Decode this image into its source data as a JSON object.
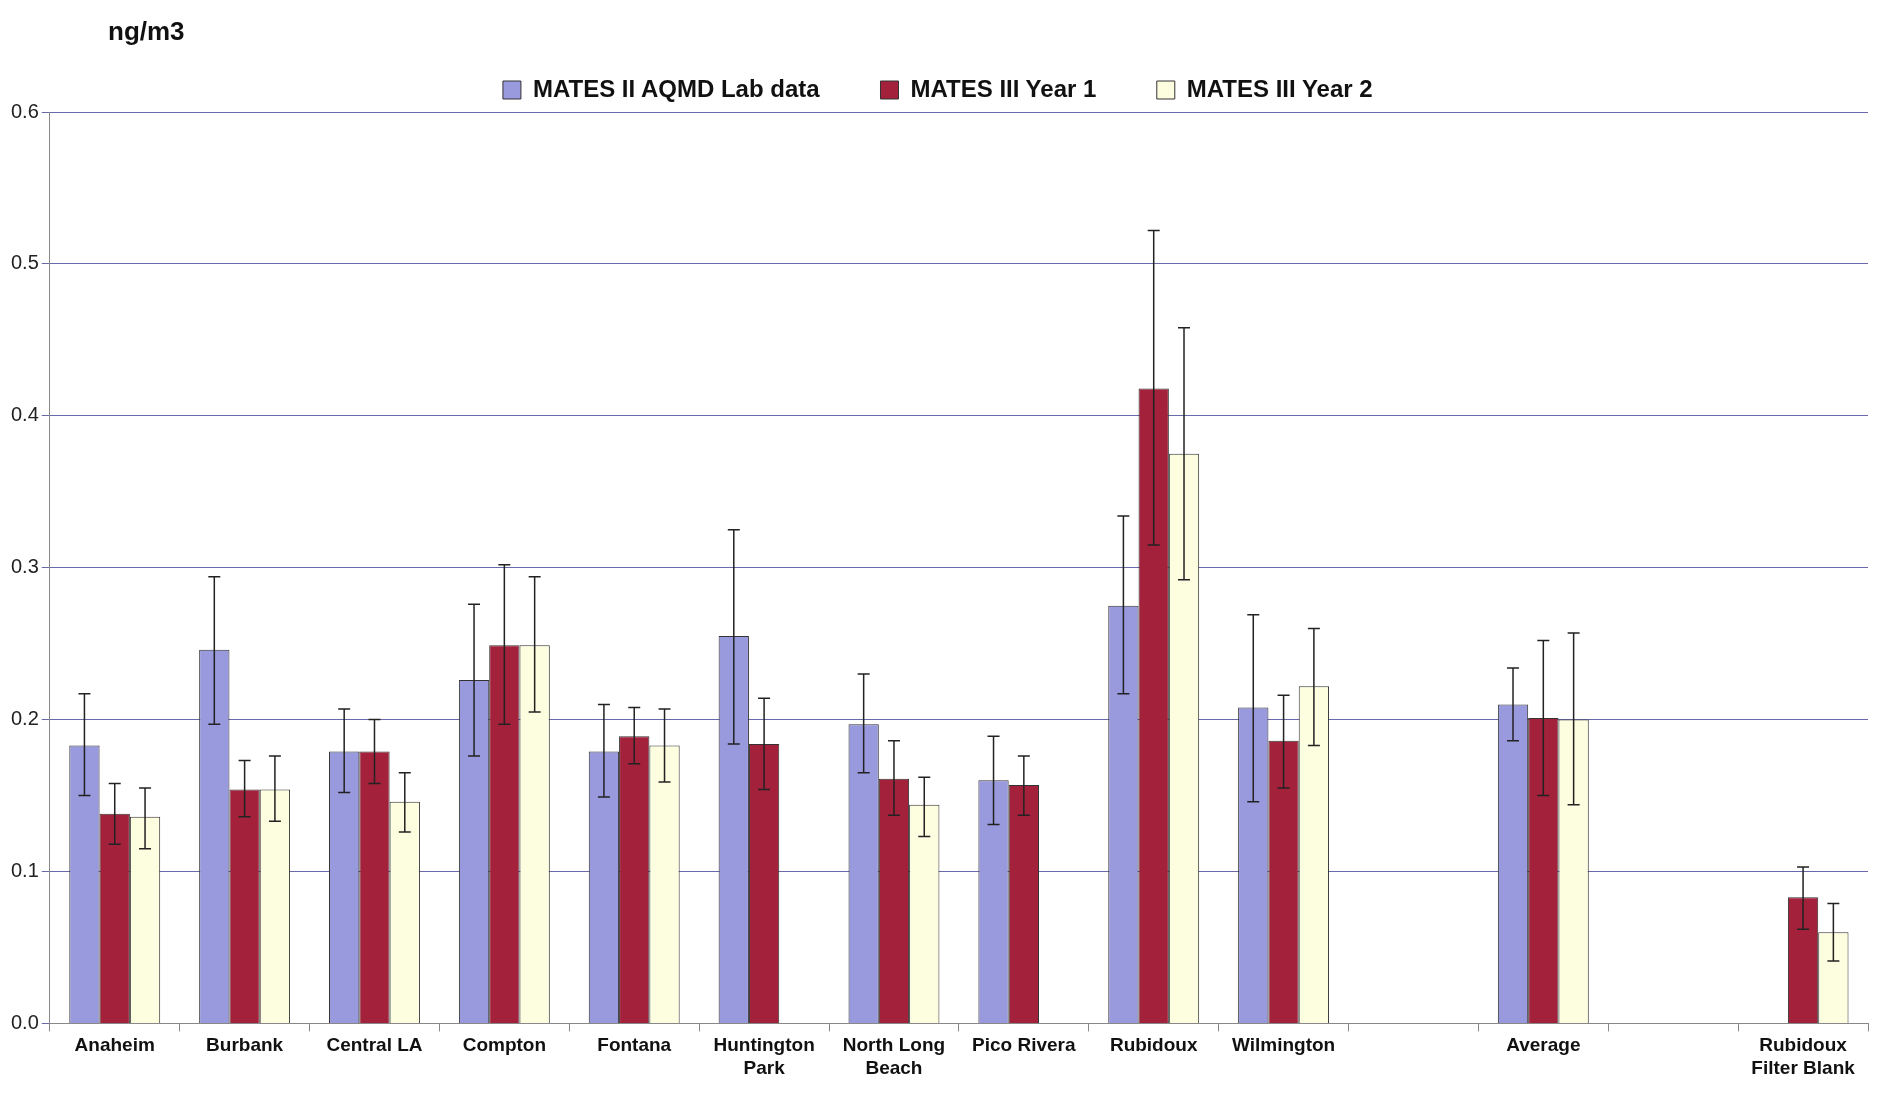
{
  "chart_data": {
    "type": "bar",
    "ylabel": "ng/m3",
    "categories": [
      "Anaheim",
      "Burbank",
      "Central LA",
      "Compton",
      "Fontana",
      "Huntington Park",
      "North Long Beach",
      "Pico Rivera",
      "Rubidoux",
      "Wilmington",
      null,
      "Average",
      null,
      "Rubidoux Filter Blank"
    ],
    "series": [
      {
        "name": "MATES II AQMD Lab data",
        "color": "#9999dd",
        "values": [
          0.183,
          0.246,
          0.179,
          0.226,
          0.179,
          0.255,
          0.197,
          0.16,
          0.275,
          0.208,
          null,
          0.21,
          null,
          null
        ],
        "errors": [
          [
            0.15,
            0.217
          ],
          [
            0.197,
            0.294
          ],
          [
            0.152,
            0.207
          ],
          [
            0.176,
            0.276
          ],
          [
            0.149,
            0.21
          ],
          [
            0.184,
            0.325
          ],
          [
            0.165,
            0.23
          ],
          [
            0.131,
            0.189
          ],
          [
            0.217,
            0.334
          ],
          [
            0.146,
            0.269
          ],
          null,
          [
            0.186,
            0.234
          ],
          null,
          null
        ]
      },
      {
        "name": "MATES III Year 1",
        "color": "#a3213b",
        "values": [
          0.138,
          0.154,
          0.179,
          0.249,
          0.189,
          0.184,
          0.161,
          0.157,
          0.418,
          0.186,
          null,
          0.201,
          null,
          0.083
        ],
        "errors": [
          [
            0.118,
            0.158
          ],
          [
            0.136,
            0.173
          ],
          [
            0.158,
            0.2
          ],
          [
            0.197,
            0.302
          ],
          [
            0.171,
            0.208
          ],
          [
            0.154,
            0.214
          ],
          [
            0.137,
            0.186
          ],
          [
            0.137,
            0.176
          ],
          [
            0.315,
            0.522
          ],
          [
            0.155,
            0.216
          ],
          null,
          [
            0.15,
            0.252
          ],
          null,
          [
            0.062,
            0.103
          ]
        ]
      },
      {
        "name": "MATES III Year 2",
        "color": "#fdfde0",
        "values": [
          0.136,
          0.154,
          0.146,
          0.249,
          0.183,
          null,
          0.144,
          null,
          0.375,
          0.222,
          null,
          0.2,
          null,
          0.06
        ],
        "errors": [
          [
            0.115,
            0.155
          ],
          [
            0.133,
            0.176
          ],
          [
            0.126,
            0.165
          ],
          [
            0.205,
            0.294
          ],
          [
            0.159,
            0.207
          ],
          null,
          [
            0.123,
            0.162
          ],
          null,
          [
            0.292,
            0.458
          ],
          [
            0.183,
            0.26
          ],
          null,
          [
            0.144,
            0.257
          ],
          null,
          [
            0.041,
            0.079
          ]
        ]
      }
    ],
    "ylim": [
      0,
      0.6
    ],
    "yticks": [
      {
        "value": 0,
        "label": "0.0"
      },
      {
        "value": 0.1,
        "label": "0.1"
      },
      {
        "value": 0.2,
        "label": "0.2"
      },
      {
        "value": 0.3,
        "label": "0.3"
      },
      {
        "value": 0.4,
        "label": "0.4"
      },
      {
        "value": 0.5,
        "label": "0.5"
      },
      {
        "value": 0.6,
        "label": "0.6"
      }
    ],
    "grid": "y",
    "legend": "top"
  }
}
